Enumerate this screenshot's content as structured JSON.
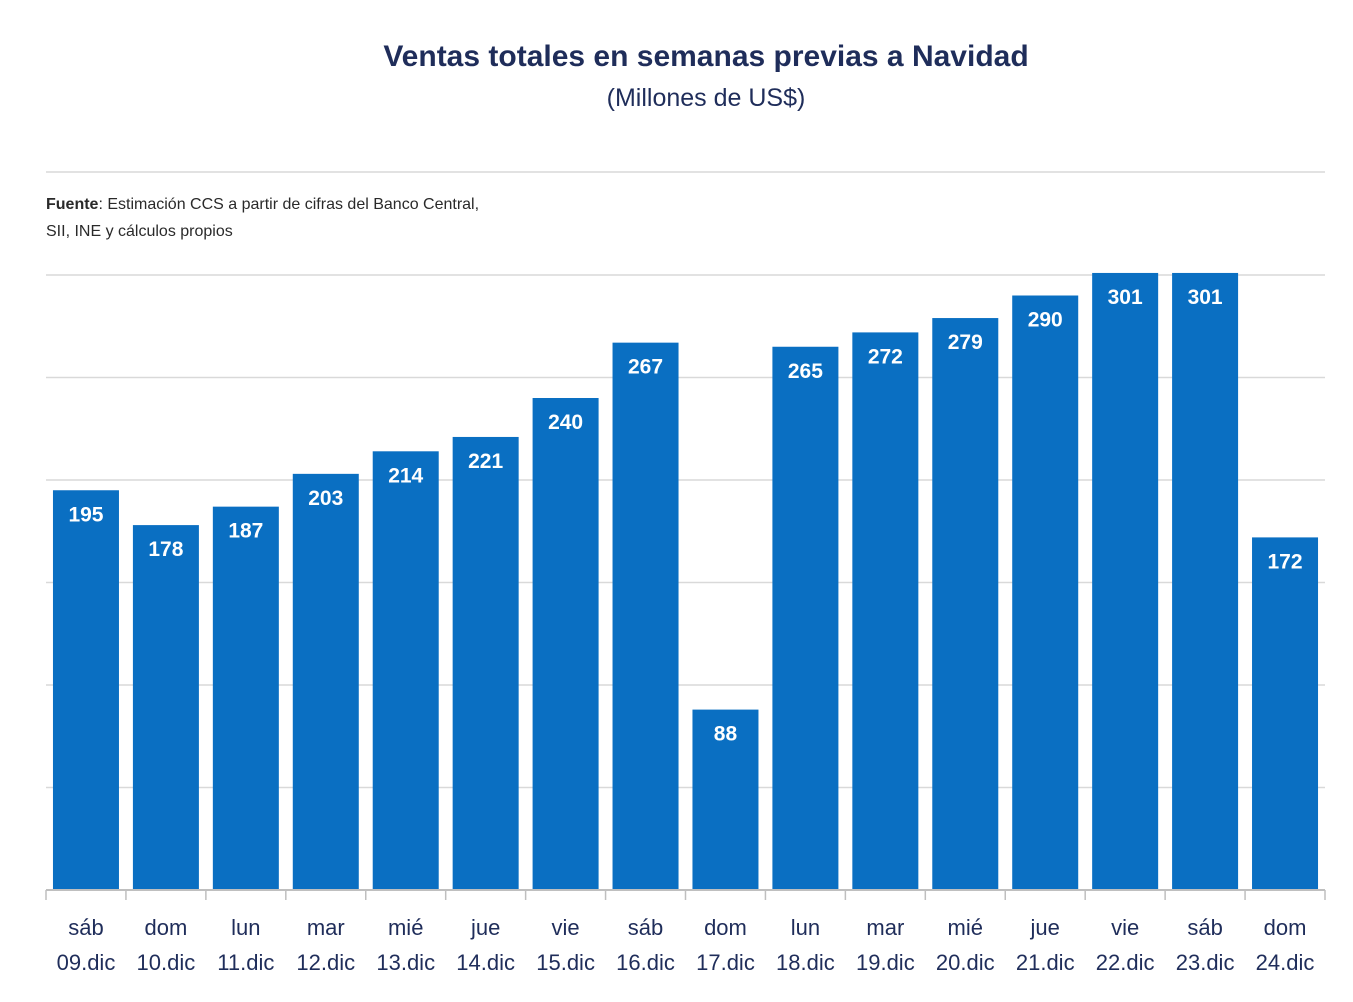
{
  "chart_data": {
    "type": "bar",
    "title": "Ventas totales en semanas previas a Navidad",
    "subtitle": "(Millones de US$)",
    "source_label": "Fuente",
    "source_text_line1": ": Estimación CCS a partir de cifras del Banco Central,",
    "source_text_line2": "SII, INE y cálculos propios",
    "categories_day": [
      "sáb",
      "dom",
      "lun",
      "mar",
      "mié",
      "jue",
      "vie",
      "sáb",
      "dom",
      "lun",
      "mar",
      "mié",
      "jue",
      "vie",
      "sáb",
      "dom"
    ],
    "categories_date": [
      "09.dic",
      "10.dic",
      "11.dic",
      "12.dic",
      "13.dic",
      "14.dic",
      "15.dic",
      "16.dic",
      "17.dic",
      "18.dic",
      "19.dic",
      "20.dic",
      "21.dic",
      "22.dic",
      "23.dic",
      "24.dic"
    ],
    "values": [
      195,
      178,
      187,
      203,
      214,
      221,
      240,
      267,
      88,
      265,
      272,
      279,
      290,
      301,
      301,
      172
    ],
    "ylim": [
      0,
      350
    ],
    "ygrid_step": 50,
    "grid": true,
    "legend": "none",
    "bar_color": "#0a6fc2",
    "label_color": "#ffffff",
    "text_color": "#1f2d5a"
  }
}
